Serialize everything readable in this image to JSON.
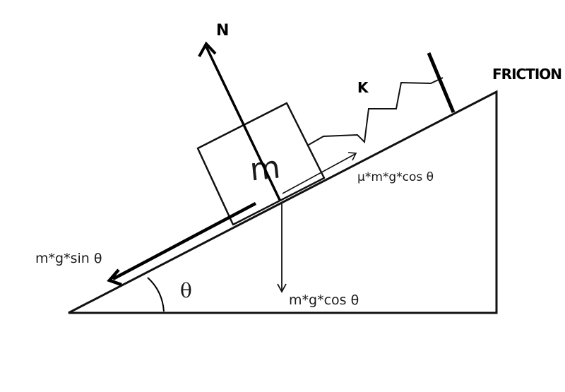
{
  "diagram": {
    "block_label": "m",
    "normal_label": "N",
    "spring_label": "K",
    "friction_surface_label": "FRICTION",
    "angle_label": "θ",
    "friction_force_label": "μ*m*g*cos θ",
    "parallel_gravity_label": "m*g*sin θ",
    "perpendicular_gravity_label": "m*g*cos θ"
  }
}
